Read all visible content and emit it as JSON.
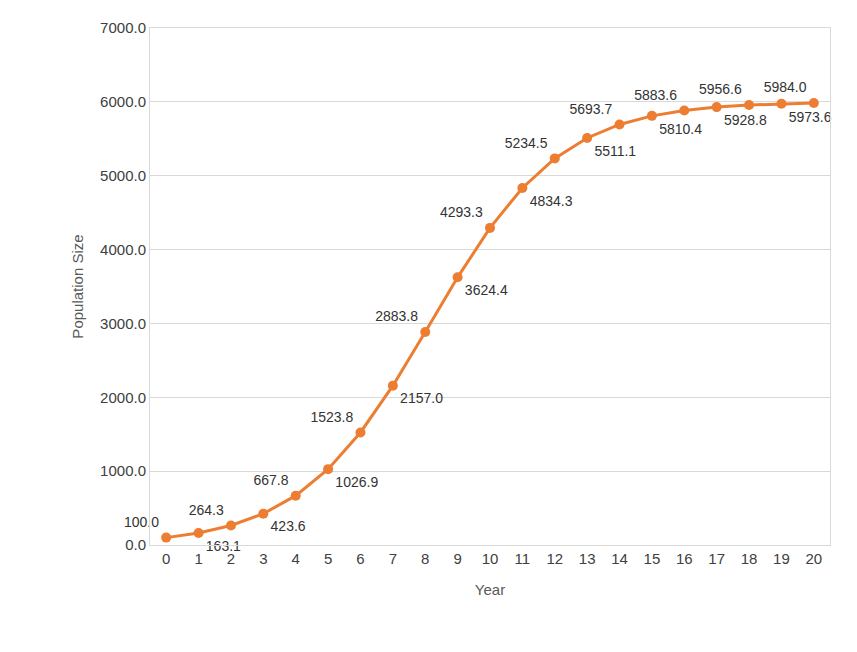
{
  "chart_data": {
    "type": "line",
    "x_label": "Year",
    "y_label": "Population Size",
    "x": [
      0,
      1,
      2,
      3,
      4,
      5,
      6,
      7,
      8,
      9,
      10,
      11,
      12,
      13,
      14,
      15,
      16,
      17,
      18,
      19,
      20
    ],
    "values": [
      100.0,
      163.1,
      264.3,
      423.6,
      667.8,
      1026.9,
      1523.8,
      2157.0,
      2883.8,
      3624.4,
      4293.3,
      4834.3,
      5234.5,
      5511.1,
      5693.7,
      5810.4,
      5883.6,
      5928.8,
      5956.6,
      5973.6,
      5984.0
    ],
    "value_labels": [
      "100.0",
      "163.1",
      "264.3",
      "423.6",
      "667.8",
      "1026.9",
      "1523.8",
      "2157.0",
      "2883.8",
      "3624.4",
      "4293.3",
      "4834.3",
      "5234.5",
      "5511.1",
      "5693.7",
      "5810.4",
      "5883.6",
      "5928.8",
      "5956.6",
      "5973.6",
      "5984.0"
    ],
    "color": "#ed7d31",
    "marker": "circle",
    "data_labels": true,
    "xlim": [
      -0.5,
      20.5
    ],
    "xticks": [
      0,
      1,
      2,
      3,
      4,
      5,
      6,
      7,
      8,
      9,
      10,
      11,
      12,
      13,
      14,
      15,
      16,
      17,
      18,
      19,
      20
    ],
    "ylim": [
      0,
      7000
    ],
    "yticks": [
      {
        "value": 0,
        "label": "0.0"
      },
      {
        "value": 1000,
        "label": "1000.0"
      },
      {
        "value": 2000,
        "label": "2000.0"
      },
      {
        "value": 3000,
        "label": "3000.0"
      },
      {
        "value": 4000,
        "label": "4000.0"
      },
      {
        "value": 5000,
        "label": "5000.0"
      },
      {
        "value": 6000,
        "label": "6000.0"
      },
      {
        "value": 7000,
        "label": "7000.0"
      }
    ],
    "grid": true
  }
}
